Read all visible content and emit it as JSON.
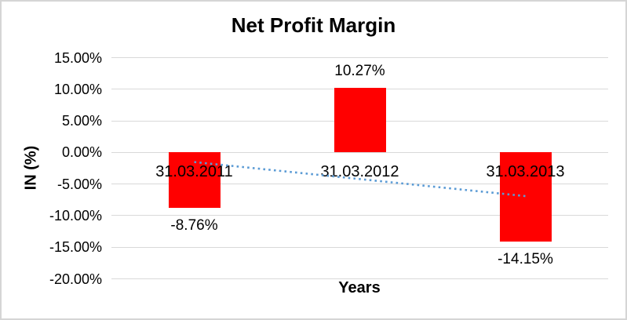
{
  "chart_data": {
    "type": "bar",
    "title": "Net Profit Margin",
    "xlabel": "Years",
    "ylabel": "IN (%)",
    "categories": [
      "31.03.2011",
      "31.03.2012",
      "31.03.2013"
    ],
    "values": [
      -8.76,
      10.27,
      -14.15
    ],
    "value_labels": [
      "-8.76%",
      "10.27%",
      "-14.15%"
    ],
    "y_axis": {
      "min": -20,
      "max": 15,
      "step": 5,
      "tick_labels": [
        "15.00%",
        "10.00%",
        "5.00%",
        "0.00%",
        "-5.00%",
        "-10.00%",
        "-15.00%",
        "-20.00%"
      ]
    },
    "grid": true,
    "legend": "none",
    "trendline": {
      "type": "linear",
      "style": "dotted",
      "start_pct": -1.52,
      "end_pct": -6.91
    },
    "colors": {
      "bar": "#ff0000",
      "gridline": "#d9d9d9",
      "trendline": "#5b9bd5",
      "text": "#000000",
      "border": "#d5d5d5",
      "background": "#ffffff"
    }
  }
}
